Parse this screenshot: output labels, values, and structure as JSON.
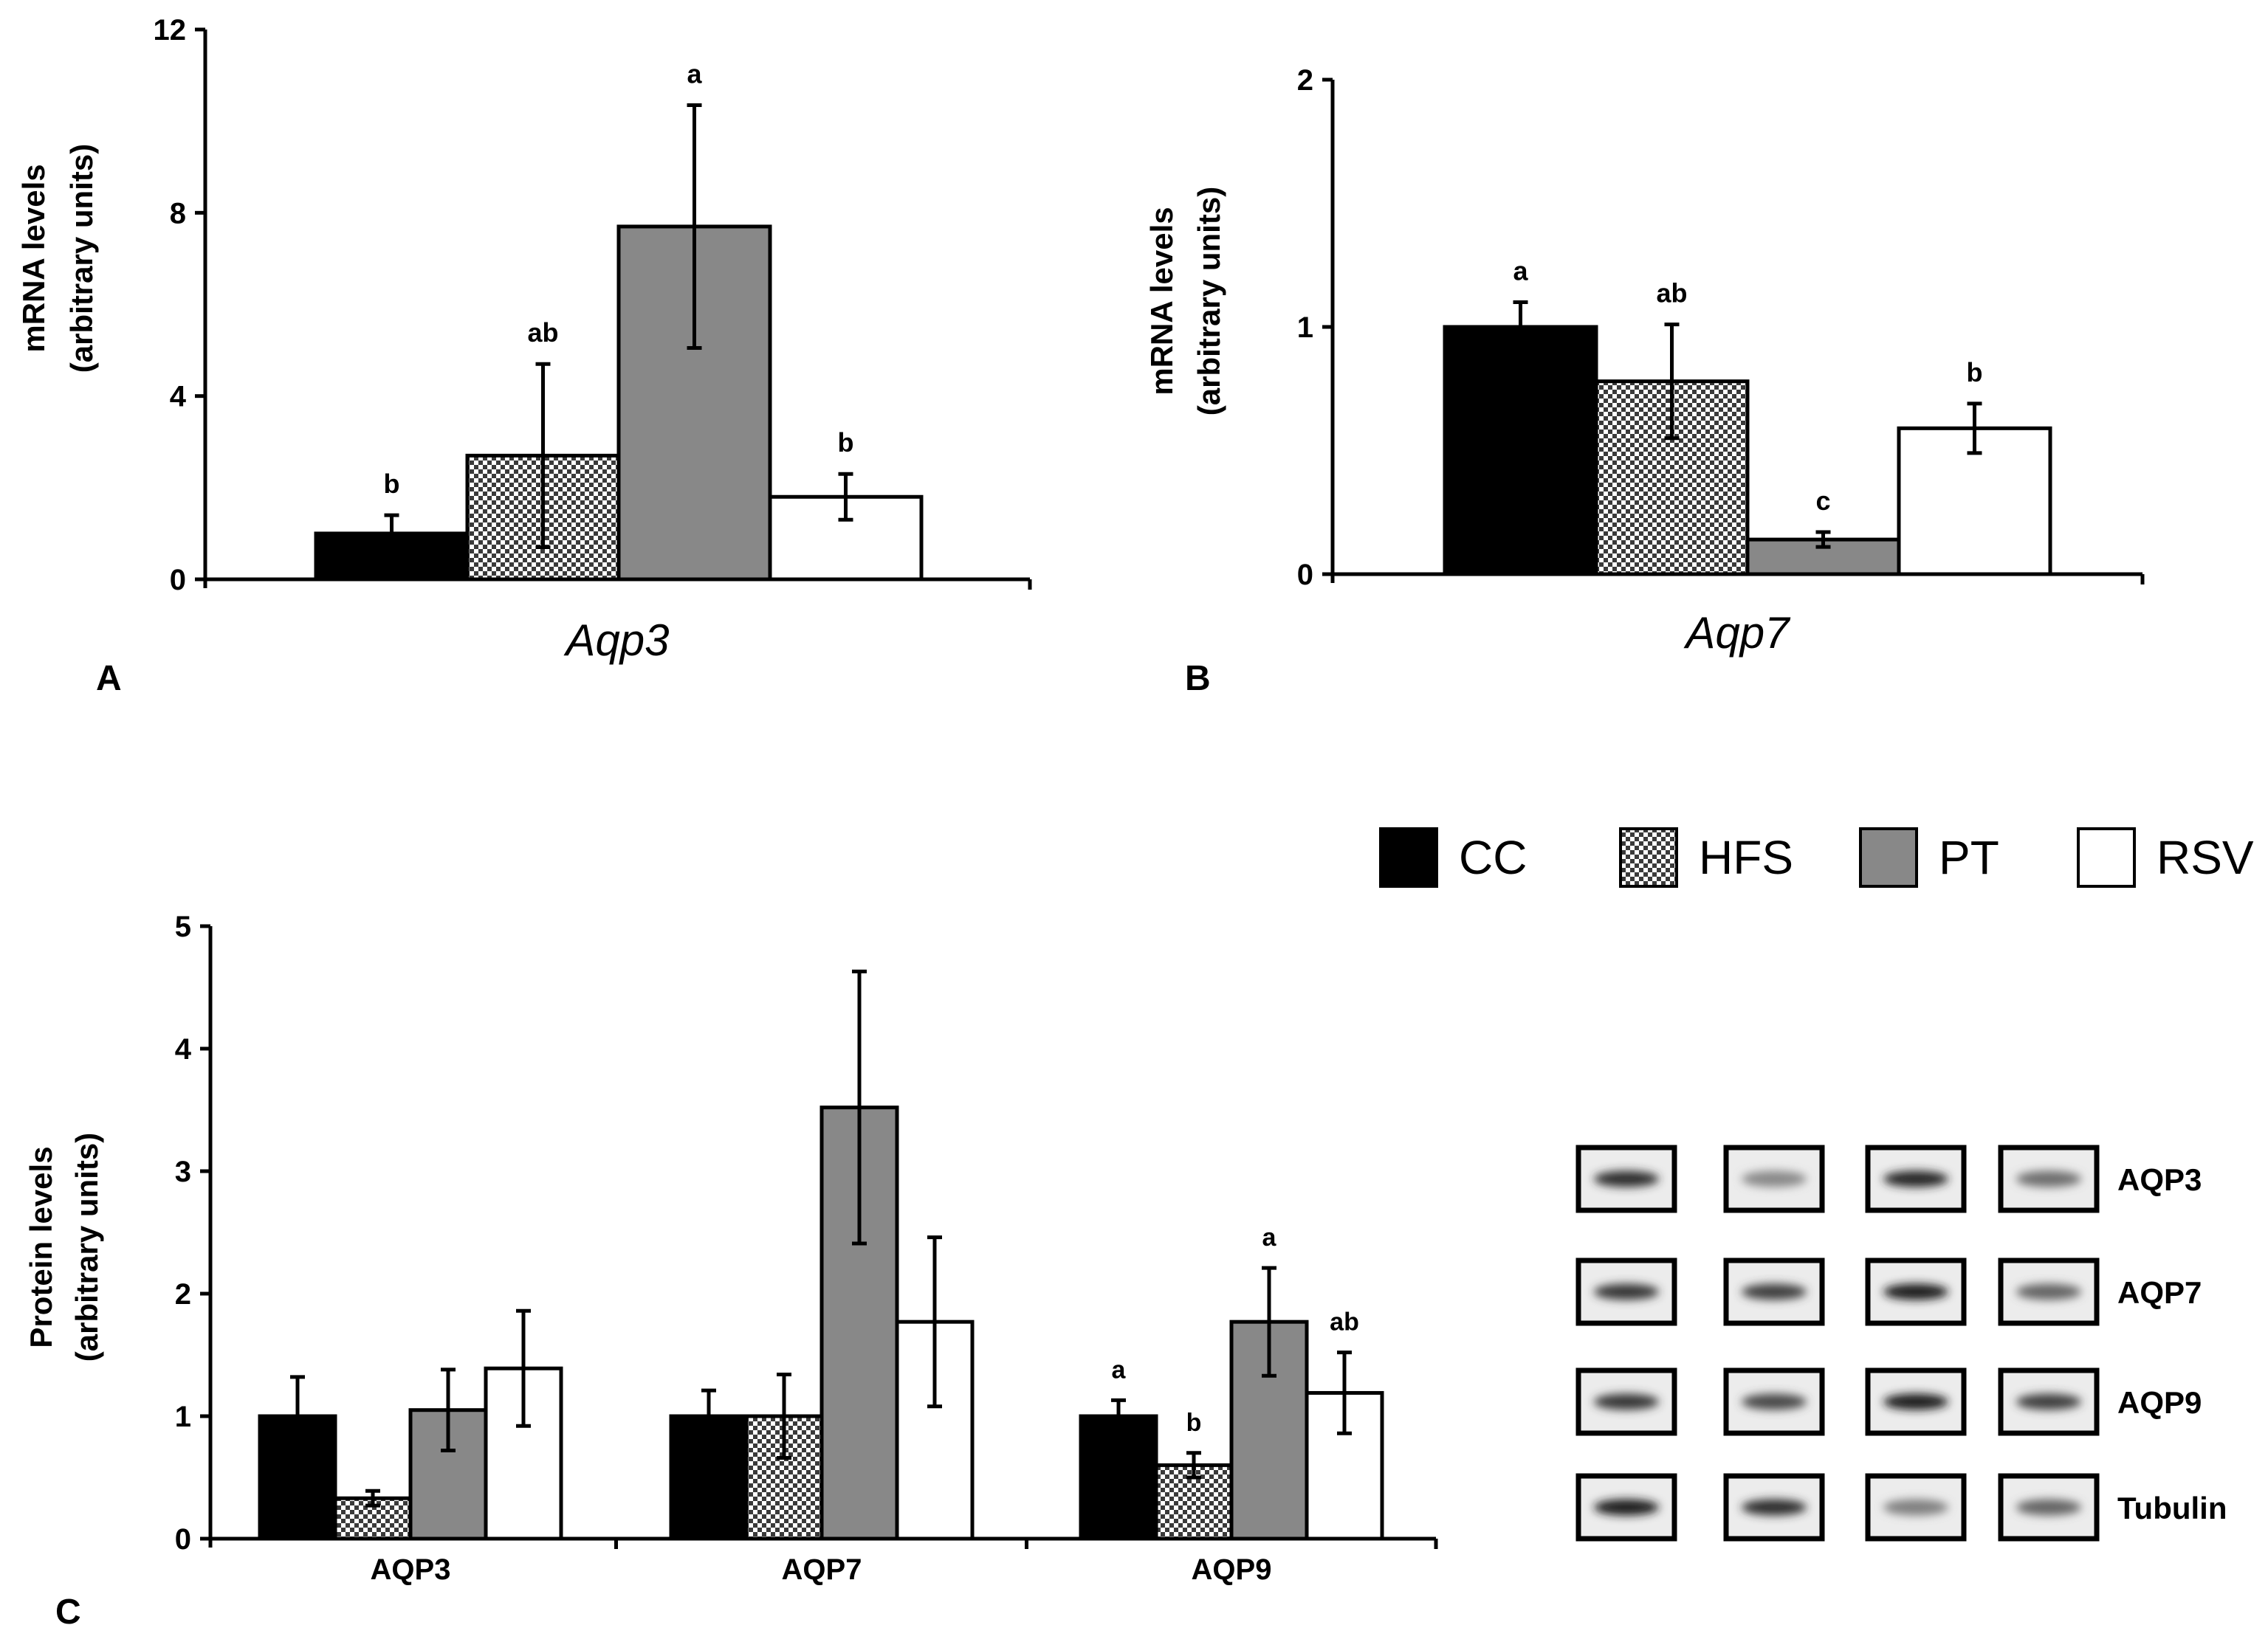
{
  "colors": {
    "CC": "#000000",
    "HFS": "checker",
    "PT": "#888888",
    "RSV": "#ffffff",
    "axis": "#000000"
  },
  "legend": {
    "items": [
      {
        "key": "CC",
        "label": "CC"
      },
      {
        "key": "HFS",
        "label": "HFS"
      },
      {
        "key": "PT",
        "label": "PT"
      },
      {
        "key": "RSV",
        "label": "RSV"
      }
    ]
  },
  "panels": {
    "A": {
      "label": "A"
    },
    "B": {
      "label": "B"
    },
    "C": {
      "label": "C"
    }
  },
  "chart_data": [
    {
      "id": "A",
      "type": "bar",
      "title": "",
      "xlabel": "Aqp3",
      "ylabel": [
        "mRNA levels",
        "(arbitrary units)"
      ],
      "ylim": [
        0,
        12
      ],
      "yticks": [
        0,
        4,
        8,
        12
      ],
      "categories": [
        "Aqp3"
      ],
      "series": [
        {
          "name": "CC",
          "values": [
            1.0
          ],
          "err": [
            0.4
          ],
          "sig": [
            "b"
          ]
        },
        {
          "name": "HFS",
          "values": [
            2.7
          ],
          "err": [
            2.0
          ],
          "sig": [
            "ab"
          ]
        },
        {
          "name": "PT",
          "values": [
            7.7
          ],
          "err": [
            2.65
          ],
          "sig": [
            "a"
          ]
        },
        {
          "name": "RSV",
          "values": [
            1.8
          ],
          "err": [
            0.5
          ],
          "sig": [
            "b"
          ]
        }
      ]
    },
    {
      "id": "B",
      "type": "bar",
      "title": "",
      "xlabel": "Aqp7",
      "ylabel": [
        "mRNA levels",
        "(arbitrary units)"
      ],
      "ylim": [
        0,
        2
      ],
      "yticks": [
        0,
        1,
        2
      ],
      "categories": [
        "Aqp7"
      ],
      "series": [
        {
          "name": "CC",
          "values": [
            1.0
          ],
          "err": [
            0.1
          ],
          "sig": [
            "a"
          ]
        },
        {
          "name": "HFS",
          "values": [
            0.78
          ],
          "err": [
            0.23
          ],
          "sig": [
            "ab"
          ]
        },
        {
          "name": "PT",
          "values": [
            0.14
          ],
          "err": [
            0.03
          ],
          "sig": [
            "c"
          ]
        },
        {
          "name": "RSV",
          "values": [
            0.59
          ],
          "err": [
            0.1
          ],
          "sig": [
            "b"
          ]
        }
      ]
    },
    {
      "id": "C",
      "type": "bar",
      "title": "",
      "xlabel": "",
      "ylabel": [
        "Protein levels",
        "(arbitrary units)"
      ],
      "ylim": [
        0,
        5
      ],
      "yticks": [
        0,
        1,
        2,
        3,
        4,
        5
      ],
      "categories": [
        "AQP3",
        "AQP7",
        "AQP9"
      ],
      "series": [
        {
          "name": "CC",
          "values": [
            1.0,
            1.0,
            1.0
          ],
          "err": [
            0.32,
            0.21,
            0.13
          ],
          "sig": [
            "",
            "",
            "a"
          ]
        },
        {
          "name": "HFS",
          "values": [
            0.33,
            1.0,
            0.6
          ],
          "err": [
            0.06,
            0.34,
            0.1
          ],
          "sig": [
            "",
            "",
            "b"
          ]
        },
        {
          "name": "PT",
          "values": [
            1.05,
            3.52,
            1.77
          ],
          "err": [
            0.33,
            1.11,
            0.44
          ],
          "sig": [
            "",
            "",
            "a"
          ]
        },
        {
          "name": "RSV",
          "values": [
            1.39,
            1.77,
            1.19
          ],
          "err": [
            0.47,
            0.69,
            0.33
          ],
          "sig": [
            "",
            "",
            "ab"
          ]
        }
      ]
    }
  ],
  "blot": {
    "rows": [
      "AQP3",
      "AQP7",
      "AQP9",
      "Tubulin"
    ],
    "intensity": [
      [
        0.85,
        0.35,
        0.9,
        0.5
      ],
      [
        0.8,
        0.75,
        0.95,
        0.55
      ],
      [
        0.8,
        0.7,
        0.95,
        0.75
      ],
      [
        0.95,
        0.85,
        0.4,
        0.55
      ]
    ]
  }
}
